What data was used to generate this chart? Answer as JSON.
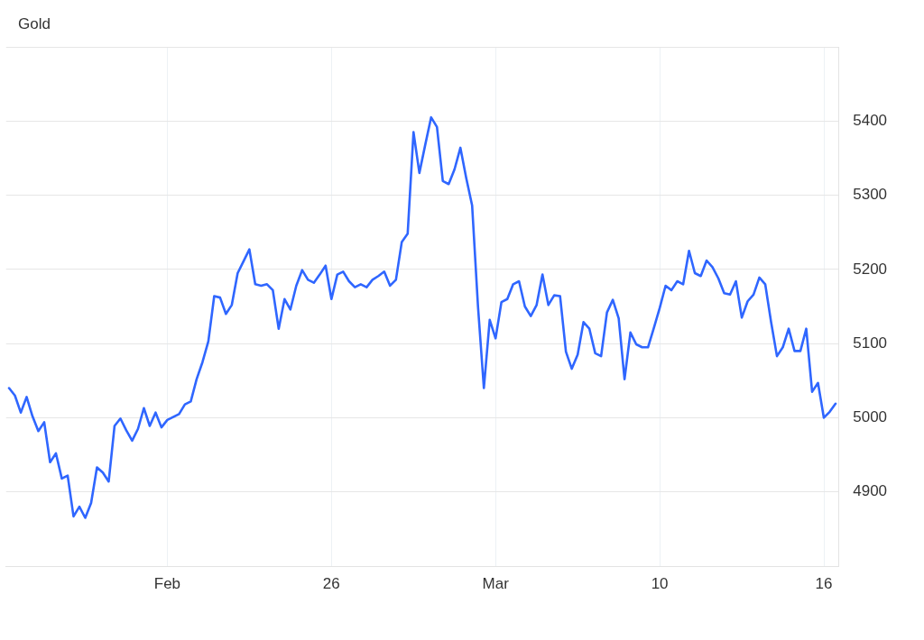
{
  "chart_data": {
    "type": "line",
    "title": "Gold",
    "categories": [
      null,
      null,
      null,
      null,
      null,
      null,
      null,
      null,
      null,
      null,
      null,
      null,
      null,
      null,
      null,
      null,
      null,
      null,
      null,
      null,
      null,
      null,
      null,
      null,
      null,
      null,
      null,
      "Feb",
      null,
      null,
      null,
      null,
      null,
      null,
      null,
      null,
      null,
      null,
      null,
      null,
      null,
      null,
      null,
      null,
      null,
      null,
      null,
      null,
      null,
      null,
      null,
      null,
      null,
      null,
      null,
      "26",
      null,
      null,
      null,
      null,
      null,
      null,
      null,
      null,
      null,
      null,
      null,
      null,
      null,
      null,
      null,
      null,
      null,
      null,
      null,
      null,
      null,
      null,
      null,
      null,
      null,
      null,
      null,
      "Mar",
      null,
      null,
      null,
      null,
      null,
      null,
      null,
      null,
      null,
      null,
      null,
      null,
      null,
      null,
      null,
      null,
      null,
      null,
      null,
      null,
      null,
      null,
      null,
      null,
      null,
      null,
      null,
      "10",
      null,
      null,
      null,
      null,
      null,
      null,
      null,
      null,
      null,
      null,
      null,
      null,
      null,
      null,
      null,
      null,
      null,
      null,
      null,
      null,
      null,
      null,
      null,
      null,
      null,
      null,
      null,
      "16",
      null,
      null
    ],
    "values": [
      5040,
      5030,
      5007,
      5028,
      5002,
      4982,
      4994,
      4940,
      4952,
      4918,
      4922,
      4867,
      4880,
      4865,
      4885,
      4933,
      4926,
      4914,
      4989,
      4999,
      4983,
      4969,
      4985,
      5013,
      4989,
      5007,
      4987,
      4997,
      5001,
      5005,
      5018,
      5022,
      5052,
      5075,
      5103,
      5164,
      5162,
      5140,
      5152,
      5195,
      5211,
      5227,
      5180,
      5178,
      5180,
      5172,
      5120,
      5160,
      5146,
      5178,
      5199,
      5186,
      5182,
      5193,
      5205,
      5160,
      5193,
      5197,
      5184,
      5176,
      5180,
      5176,
      5186,
      5191,
      5197,
      5178,
      5186,
      5237,
      5248,
      5385,
      5330,
      5368,
      5405,
      5392,
      5319,
      5315,
      5335,
      5364,
      5323,
      5286,
      5150,
      5040,
      5132,
      5107,
      5156,
      5160,
      5180,
      5184,
      5150,
      5137,
      5152,
      5193,
      5152,
      5165,
      5164,
      5089,
      5066,
      5085,
      5129,
      5120,
      5087,
      5083,
      5142,
      5159,
      5134,
      5052,
      5115,
      5099,
      5095,
      5095,
      5121,
      5148,
      5178,
      5172,
      5184,
      5180,
      5225,
      5195,
      5191,
      5212,
      5203,
      5188,
      5168,
      5166,
      5184,
      5135,
      5157,
      5166,
      5189,
      5180,
      5129,
      5083,
      5095,
      5120,
      5090,
      5090,
      5120,
      5035,
      5047,
      5000,
      5008,
      5019
    ],
    "color": "#2f66ff",
    "ylim": [
      4800,
      5500
    ],
    "yticks": [
      {
        "value": 4800,
        "label": null
      },
      4900,
      5000,
      5100,
      5200,
      5300,
      5400,
      {
        "value": 5500,
        "label": null
      }
    ],
    "grid": true,
    "marker": "none",
    "line_style": "solid"
  }
}
